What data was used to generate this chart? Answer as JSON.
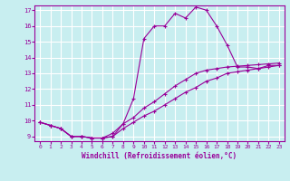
{
  "xlabel": "Windchill (Refroidissement éolien,°C)",
  "background_color": "#c8eef0",
  "grid_color": "#aadddd",
  "line_color": "#990099",
  "xlim": [
    -0.5,
    23.5
  ],
  "ylim": [
    8.7,
    17.3
  ],
  "xticks": [
    0,
    1,
    2,
    3,
    4,
    5,
    6,
    7,
    8,
    9,
    10,
    11,
    12,
    13,
    14,
    15,
    16,
    17,
    18,
    19,
    20,
    21,
    22,
    23
  ],
  "yticks": [
    9,
    10,
    11,
    12,
    13,
    14,
    15,
    16,
    17
  ],
  "line1_x": [
    0,
    1,
    2,
    3,
    4,
    5,
    6,
    7,
    8,
    9,
    10,
    11,
    12,
    13,
    14,
    15,
    16,
    17,
    18,
    19,
    20,
    21,
    22,
    23
  ],
  "line1_y": [
    9.9,
    9.7,
    9.5,
    9.0,
    9.0,
    8.9,
    8.9,
    9.0,
    9.8,
    11.4,
    15.2,
    16.0,
    16.0,
    16.8,
    16.5,
    17.2,
    17.0,
    16.0,
    14.8,
    13.4,
    13.4,
    13.3,
    13.5,
    13.5
  ],
  "line2_x": [
    0,
    1,
    2,
    3,
    4,
    5,
    6,
    7,
    8,
    9,
    10,
    11,
    12,
    13,
    14,
    15,
    16,
    17,
    18,
    19,
    20,
    21,
    22,
    23
  ],
  "line2_y": [
    9.9,
    9.7,
    9.5,
    9.0,
    9.0,
    8.9,
    8.9,
    9.0,
    9.5,
    9.9,
    10.3,
    10.6,
    11.0,
    11.4,
    11.8,
    12.1,
    12.5,
    12.7,
    13.0,
    13.1,
    13.2,
    13.3,
    13.4,
    13.5
  ],
  "line3_x": [
    0,
    1,
    2,
    3,
    4,
    5,
    6,
    7,
    8,
    9,
    10,
    11,
    12,
    13,
    14,
    15,
    16,
    17,
    18,
    19,
    20,
    21,
    22,
    23
  ],
  "line3_y": [
    9.9,
    9.7,
    9.5,
    9.0,
    9.0,
    8.9,
    8.9,
    9.2,
    9.8,
    10.2,
    10.8,
    11.2,
    11.7,
    12.2,
    12.6,
    13.0,
    13.2,
    13.3,
    13.4,
    13.45,
    13.5,
    13.55,
    13.6,
    13.65
  ]
}
